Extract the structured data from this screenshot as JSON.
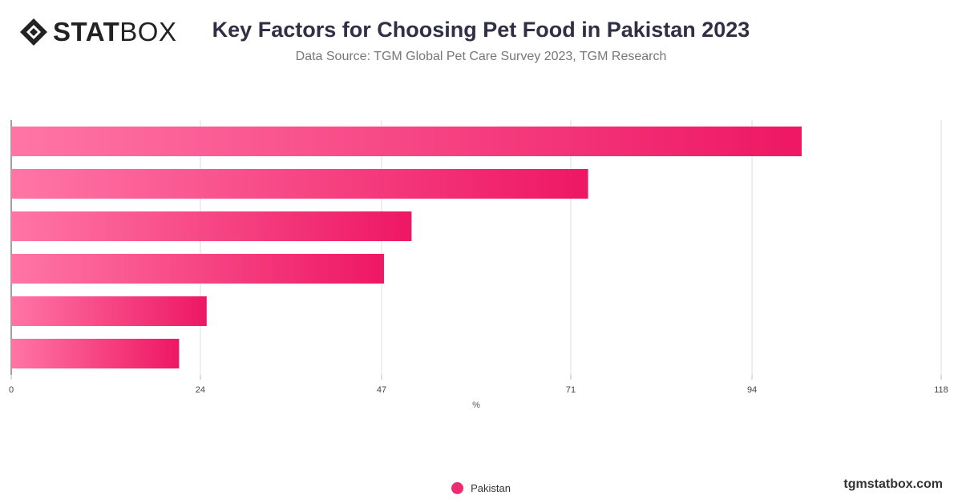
{
  "header": {
    "logo_bold": "STAT",
    "logo_regular": "BOX",
    "title": "Key Factors for Choosing Pet Food in Pakistan 2023",
    "subtitle": "Data Source: TGM Global Pet Care Survey 2023, TGM Research"
  },
  "footer": {
    "site": "tgmstatbox.com"
  },
  "colors": {
    "bar_light": "#ff75a6",
    "bar_dark": "#ee1763",
    "legend": "#ee2b72"
  },
  "chart_data": {
    "type": "bar",
    "orientation": "horizontal",
    "categories": [
      "",
      "",
      "",
      "",
      "",
      ""
    ],
    "series": [
      {
        "name": "Pakistan",
        "values": [
          100.3,
          73.2,
          50.8,
          47.3,
          24.8,
          21.3
        ]
      }
    ],
    "xlabel": "%",
    "ylabel": "",
    "xlim": [
      0,
      118
    ],
    "xticks": [
      0,
      24,
      47,
      71,
      94,
      118
    ],
    "grid": true,
    "legend_position": "bottom-center"
  }
}
